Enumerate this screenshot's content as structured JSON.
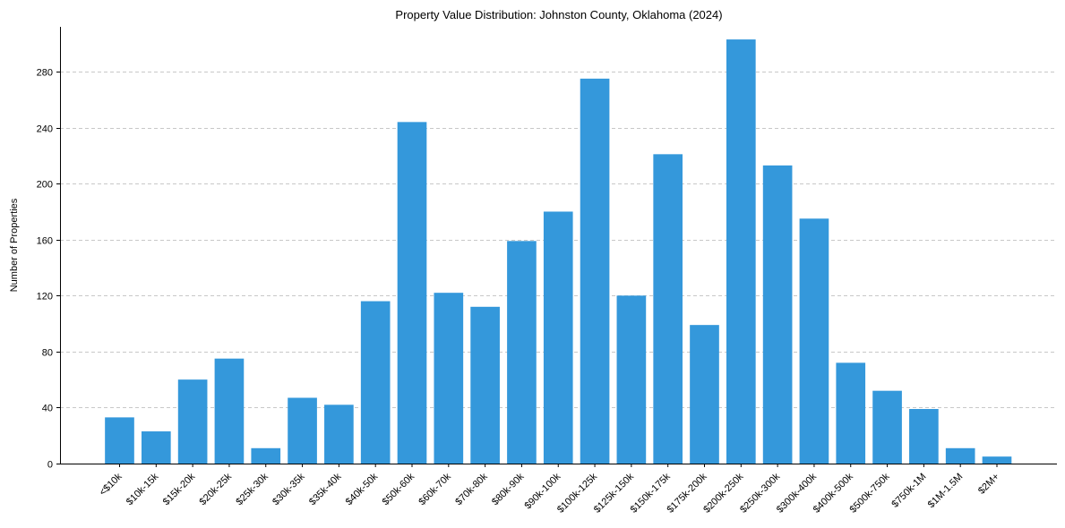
{
  "chart_data": {
    "type": "bar",
    "title": "Property Value Distribution: Johnston County, Oklahoma (2024)",
    "xlabel": "",
    "ylabel": "Number of Properties",
    "ylim": [
      0,
      312
    ],
    "yticks": [
      0,
      40,
      80,
      120,
      160,
      200,
      240,
      280
    ],
    "grid": "y-dashed",
    "bar_color": "#3498db",
    "categories": [
      "<$10k",
      "$10k-15k",
      "$15k-20k",
      "$20k-25k",
      "$25k-30k",
      "$30k-35k",
      "$35k-40k",
      "$40k-50k",
      "$50k-60k",
      "$60k-70k",
      "$70k-80k",
      "$80k-90k",
      "$90k-100k",
      "$100k-125k",
      "$125k-150k",
      "$150k-175k",
      "$175k-200k",
      "$200k-250k",
      "$250k-300k",
      "$300k-400k",
      "$400k-500k",
      "$500k-750k",
      "$750k-1M",
      "$1M-1.5M",
      "$2M+"
    ],
    "values": [
      33,
      23,
      60,
      75,
      11,
      47,
      42,
      116,
      244,
      122,
      112,
      159,
      180,
      275,
      120,
      221,
      99,
      303,
      213,
      175,
      72,
      52,
      39,
      11,
      5
    ]
  }
}
